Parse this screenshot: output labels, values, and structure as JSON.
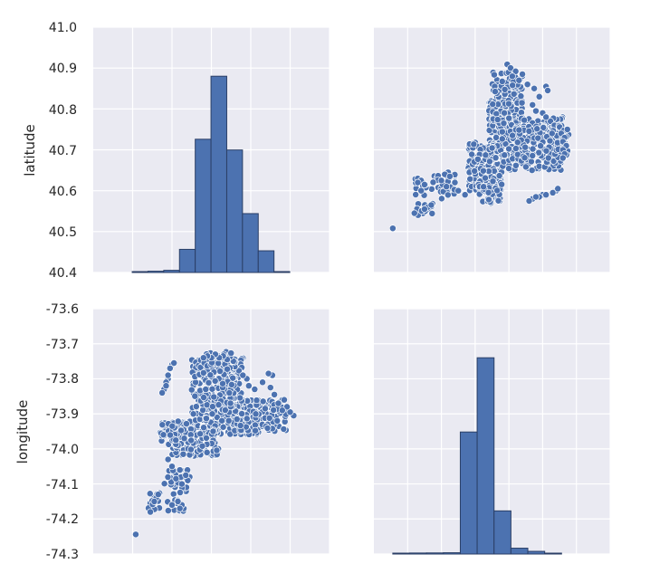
{
  "colors": {
    "panel_bg": "#eaeaf2",
    "grid": "#ffffff",
    "marker": "#4c72b0",
    "edge": "#2b3f66",
    "text": "#262626"
  },
  "chart_data": {
    "type": "pairplot",
    "variables": [
      "latitude",
      "longitude"
    ],
    "grid": true,
    "latitude_range": [
      40.4,
      41.0
    ],
    "longitude_range": [
      -74.3,
      -73.6
    ],
    "latitude_ticks": [
      "40.4",
      "40.5",
      "40.6",
      "40.7",
      "40.8",
      "40.9",
      "41.0"
    ],
    "longitude_ticks": [
      "-74.3",
      "-74.2",
      "-74.1",
      "-74.0",
      "-73.9",
      "-73.8",
      "-73.7",
      "-73.6"
    ],
    "latitude_hist": {
      "bin_edges": [
        40.499,
        40.539,
        40.579,
        40.619,
        40.659,
        40.699,
        40.739,
        40.779,
        40.819,
        40.859,
        40.899
      ],
      "counts": [
        15,
        62,
        105,
        1120,
        6450,
        9500,
        5930,
        2850,
        1050,
        35
      ]
    },
    "longitude_hist": {
      "bin_edges": [
        -74.244,
        -74.194,
        -74.144,
        -74.094,
        -74.044,
        -73.994,
        -73.944,
        -73.894,
        -73.844,
        -73.794,
        -73.744
      ],
      "counts": [
        55,
        110,
        120,
        140,
        13150,
        21150,
        4650,
        630,
        290,
        45
      ]
    },
    "clusters": [
      {
        "lat": [
          40.7,
          40.82
        ],
        "lon": [
          -73.96,
          -73.86
        ],
        "n": 230
      },
      {
        "lat": [
          40.75,
          40.89
        ],
        "lon": [
          -73.95,
          -73.86
        ],
        "n": 110
      },
      {
        "lat": [
          40.6,
          40.72
        ],
        "lon": [
          -74.02,
          -73.92
        ],
        "n": 180
      },
      {
        "lat": [
          40.57,
          40.65
        ],
        "lon": [
          -73.99,
          -73.92
        ],
        "n": 80
      },
      {
        "lat": [
          40.65,
          40.78
        ],
        "lon": [
          -73.92,
          -73.74
        ],
        "n": 220
      },
      {
        "lat": [
          40.68,
          40.76
        ],
        "lon": [
          -73.88,
          -73.72
        ],
        "n": 90
      },
      {
        "lat": [
          40.58,
          40.64
        ],
        "lon": [
          -74.18,
          -74.05
        ],
        "n": 40
      },
      {
        "lat": [
          40.54,
          40.57
        ],
        "lon": [
          -74.18,
          -74.12
        ],
        "n": 12
      }
    ],
    "named_points": [
      {
        "lat": 40.909,
        "lon": -73.905
      },
      {
        "lat": 40.9,
        "lon": -73.895
      },
      {
        "lat": 40.892,
        "lon": -73.88
      },
      {
        "lat": 40.885,
        "lon": -73.86
      },
      {
        "lat": 40.86,
        "lon": -73.845
      },
      {
        "lat": 40.85,
        "lon": -73.825
      },
      {
        "lat": 40.81,
        "lon": -73.83
      },
      {
        "lat": 40.795,
        "lon": -73.82
      },
      {
        "lat": 40.83,
        "lon": -73.81
      },
      {
        "lat": 40.855,
        "lon": -73.79
      },
      {
        "lat": 40.845,
        "lon": -73.785
      },
      {
        "lat": 40.88,
        "lon": -73.89
      },
      {
        "lat": 40.87,
        "lon": -73.87
      },
      {
        "lat": 40.79,
        "lon": -73.8
      },
      {
        "lat": 40.78,
        "lon": -73.79
      },
      {
        "lat": 40.74,
        "lon": -73.745
      },
      {
        "lat": 40.73,
        "lon": -73.735
      },
      {
        "lat": 40.72,
        "lon": -73.74
      },
      {
        "lat": 40.71,
        "lon": -73.73
      },
      {
        "lat": 40.7,
        "lon": -73.74
      },
      {
        "lat": 40.69,
        "lon": -73.735
      },
      {
        "lat": 40.68,
        "lon": -73.74
      },
      {
        "lat": 40.6,
        "lon": -73.76
      },
      {
        "lat": 40.595,
        "lon": -73.77
      },
      {
        "lat": 40.605,
        "lon": -73.755
      },
      {
        "lat": 40.59,
        "lon": -73.8
      },
      {
        "lat": 40.585,
        "lon": -73.81
      },
      {
        "lat": 40.58,
        "lon": -73.83
      },
      {
        "lat": 40.575,
        "lon": -73.84
      },
      {
        "lat": 40.59,
        "lon": -73.79
      },
      {
        "lat": 40.585,
        "lon": -73.82
      },
      {
        "lat": 40.63,
        "lon": -74.17
      },
      {
        "lat": 40.625,
        "lon": -74.16
      },
      {
        "lat": 40.62,
        "lon": -74.17
      },
      {
        "lat": 40.615,
        "lon": -74.15
      },
      {
        "lat": 40.6,
        "lon": -74.16
      },
      {
        "lat": 40.645,
        "lon": -74.08
      },
      {
        "lat": 40.64,
        "lon": -74.09
      },
      {
        "lat": 40.625,
        "lon": -74.1
      },
      {
        "lat": 40.635,
        "lon": -74.075
      },
      {
        "lat": 40.62,
        "lon": -74.06
      },
      {
        "lat": 40.61,
        "lon": -74.085
      },
      {
        "lat": 40.56,
        "lon": -74.14
      },
      {
        "lat": 40.555,
        "lon": -74.15
      },
      {
        "lat": 40.565,
        "lon": -74.13
      },
      {
        "lat": 40.545,
        "lon": -74.18
      },
      {
        "lat": 40.6,
        "lon": -74.05
      },
      {
        "lat": 40.59,
        "lon": -74.03
      },
      {
        "lat": 40.508,
        "lon": -74.244
      }
    ]
  },
  "panels": {
    "top_left": {
      "ylabel": "latitude",
      "ytick_labels": [
        "40.4",
        "40.5",
        "40.6",
        "40.7",
        "40.8",
        "40.9",
        "41.0"
      ]
    },
    "bottom_left": {
      "ylabel": "longitude",
      "ytick_labels": [
        "-74.3",
        "-74.2",
        "-74.1",
        "-74.0",
        "-73.9",
        "-73.8",
        "-73.7",
        "-73.6"
      ]
    }
  }
}
